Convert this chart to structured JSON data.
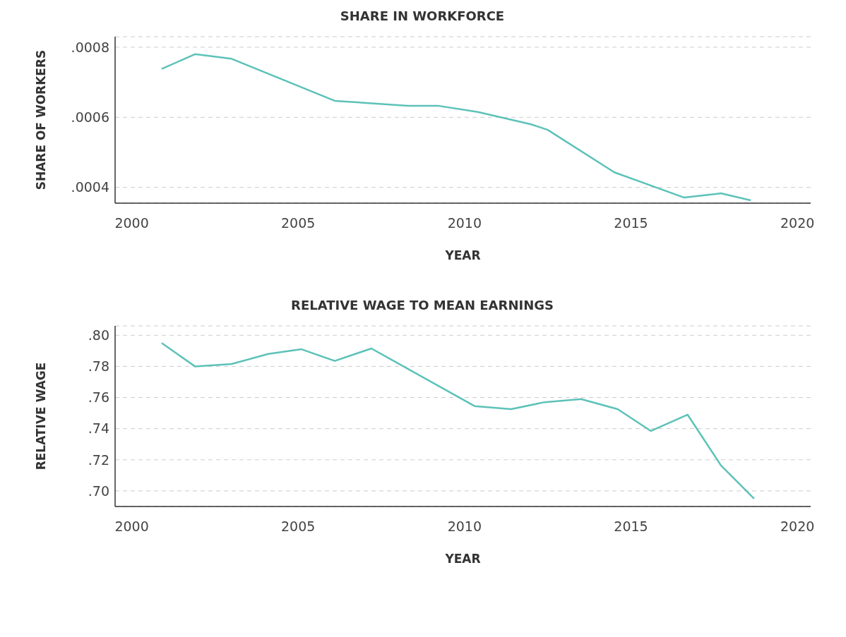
{
  "chart_data": [
    {
      "type": "line",
      "title": "SHARE IN WORKFORCE",
      "xlabel": "YEAR",
      "ylabel": "SHARE OF WORKERS",
      "color": "#5cc2b8",
      "x": [
        2000.9,
        2001.9,
        2003,
        2006.1,
        2008.3,
        2009.2,
        2010.4,
        2012,
        2012.5,
        2014.5,
        2016.6,
        2017.7,
        2018.6
      ],
      "values": [
        0.000738,
        0.00078,
        0.000767,
        0.000647,
        0.000633,
        0.000633,
        0.000615,
        0.00058,
        0.000564,
        0.000443,
        0.000371,
        0.000383,
        0.000363
      ],
      "xlim": [
        1999.5,
        2020.4
      ],
      "xticks": [
        2000,
        2005,
        2010,
        2015,
        2020
      ],
      "ylim": [
        0.000355,
        0.00083
      ],
      "yticks": [
        {
          "value": 0.0004,
          "label": ".0004"
        },
        {
          "value": 0.0006,
          "label": ".0006"
        },
        {
          "value": 0.0008,
          "label": ".0008"
        }
      ],
      "grid": "y",
      "legend": false,
      "marker": "none",
      "line_style": "solid"
    },
    {
      "type": "line",
      "title": "RELATIVE WAGE TO MEAN EARNINGS",
      "xlabel": "YEAR",
      "ylabel": "RELATIVE WAGE",
      "color": "#5cc2b8",
      "x": [
        2000.9,
        2001.9,
        2003,
        2004.1,
        2005.1,
        2006.1,
        2007.2,
        2010.3,
        2011.4,
        2012.4,
        2013.5,
        2014.6,
        2015.6,
        2016.7,
        2017.7,
        2018.7
      ],
      "values": [
        0.795,
        0.78,
        0.7815,
        0.788,
        0.791,
        0.7835,
        0.7915,
        0.7545,
        0.7525,
        0.757,
        0.759,
        0.7525,
        0.7385,
        0.749,
        0.7165,
        0.695
      ],
      "xlim": [
        1999.5,
        2020.4
      ],
      "xticks": [
        2000,
        2005,
        2010,
        2015,
        2020
      ],
      "ylim": [
        0.69,
        0.806
      ],
      "yticks": [
        {
          "value": 0.7,
          "label": ".70"
        },
        {
          "value": 0.72,
          "label": ".72"
        },
        {
          "value": 0.74,
          "label": ".74"
        },
        {
          "value": 0.76,
          "label": ".76"
        },
        {
          "value": 0.78,
          "label": ".78"
        },
        {
          "value": 0.8,
          "label": ".80"
        }
      ],
      "grid": "y",
      "legend": false,
      "marker": "none",
      "line_style": "solid"
    }
  ]
}
